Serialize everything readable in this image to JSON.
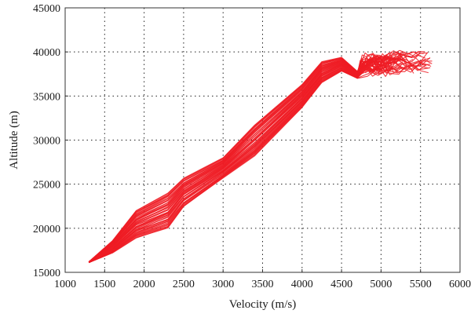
{
  "chart_data": {
    "type": "line",
    "title": "",
    "xlabel": "Velocity (m/s)",
    "ylabel": "Altitude (m)",
    "xlim": [
      1000,
      6000
    ],
    "ylim": [
      15000,
      45000
    ],
    "xticks": [
      1000,
      1500,
      2000,
      2500,
      3000,
      3500,
      4000,
      4500,
      5000,
      5500,
      6000
    ],
    "yticks": [
      15000,
      20000,
      25000,
      30000,
      35000,
      40000,
      45000
    ],
    "xtick_labels": [
      "1000",
      "1500",
      "2000",
      "2500",
      "3000",
      "3500",
      "4000",
      "4500",
      "5000",
      "5500",
      "6000"
    ],
    "ytick_labels": [
      "15000",
      "20000",
      "25000",
      "30000",
      "35000",
      "40000",
      "45000"
    ],
    "grid": true,
    "grid_style": "dotted",
    "legend": "none",
    "series_color": "#ee1c24",
    "series_description": "Many overlapping trajectories forming a dense band",
    "band": {
      "upper": [
        [
          1300,
          16200
        ],
        [
          1600,
          18600
        ],
        [
          1900,
          22000
        ],
        [
          2300,
          24000
        ],
        [
          2500,
          25700
        ],
        [
          3000,
          28000
        ],
        [
          3400,
          31700
        ],
        [
          4000,
          36300
        ],
        [
          4250,
          38900
        ],
        [
          4500,
          39400
        ],
        [
          4700,
          37800
        ]
      ],
      "lower": [
        [
          1300,
          16100
        ],
        [
          1600,
          17200
        ],
        [
          1900,
          18900
        ],
        [
          2300,
          20000
        ],
        [
          2500,
          22400
        ],
        [
          3000,
          25700
        ],
        [
          3400,
          28200
        ],
        [
          4000,
          33700
        ],
        [
          4250,
          36500
        ],
        [
          4500,
          37800
        ],
        [
          4700,
          37000
        ]
      ],
      "tail_x_range": [
        4700,
        5650
      ],
      "tail_y_range": [
        37200,
        40900
      ]
    }
  }
}
